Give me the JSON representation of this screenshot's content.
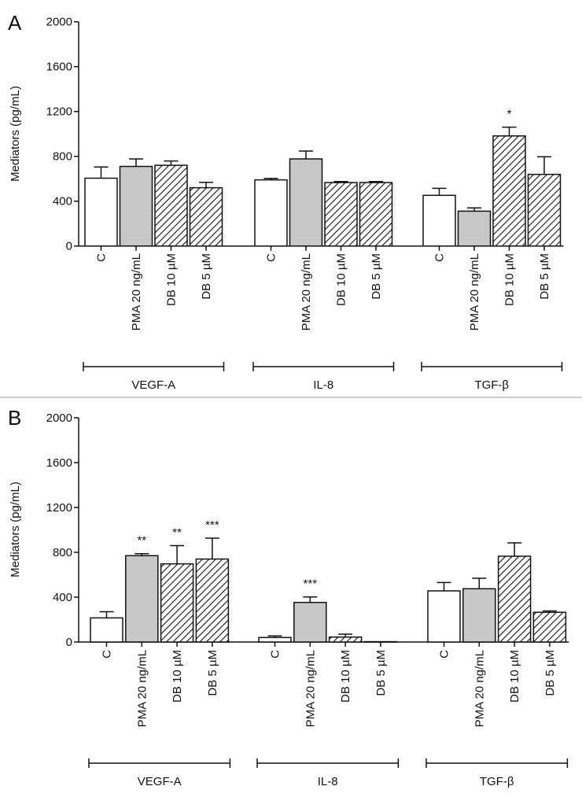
{
  "chart_data": [
    {
      "type": "bar",
      "panel": "A",
      "ylabel": "Mediators (pg/mL)",
      "ylim": [
        0,
        2000
      ],
      "yticks": [
        0,
        400,
        800,
        1200,
        1600,
        2000
      ],
      "categories": [
        "C",
        "PMA 20 ng/mL",
        "DB 10 µM",
        "DB 5 µM"
      ],
      "groups": [
        {
          "name": "VEGF-A",
          "values": [
            605,
            710,
            720,
            520
          ],
          "errors": [
            100,
            67,
            38,
            48
          ],
          "annotations": [
            "",
            "",
            "",
            ""
          ]
        },
        {
          "name": "IL-8",
          "values": [
            590,
            777,
            566,
            566
          ],
          "errors": [
            13,
            70,
            9,
            9
          ],
          "annotations": [
            "",
            "",
            "",
            ""
          ]
        },
        {
          "name": "TGF-β",
          "values": [
            452,
            311,
            982,
            639
          ],
          "errors": [
            63,
            29,
            78,
            157
          ],
          "annotations": [
            "",
            "",
            "*",
            ""
          ]
        }
      ]
    },
    {
      "type": "bar",
      "panel": "B",
      "ylabel": "Mediators (pg/mL)",
      "ylim": [
        0,
        2000
      ],
      "yticks": [
        0,
        400,
        800,
        1200,
        1600,
        2000
      ],
      "categories": [
        "C",
        "PMA 20 ng/mL",
        "DB 10 µM",
        "DB 5 µM"
      ],
      "groups": [
        {
          "name": "VEGF-A",
          "values": [
            215,
            770,
            697,
            740
          ],
          "errors": [
            55,
            18,
            163,
            186
          ],
          "annotations": [
            "",
            "**",
            "**",
            "***"
          ]
        },
        {
          "name": "IL-8",
          "values": [
            40,
            353,
            44,
            3
          ],
          "errors": [
            14,
            49,
            26,
            0
          ],
          "annotations": [
            "",
            "***",
            "",
            ""
          ]
        },
        {
          "name": "TGF-β",
          "values": [
            456,
            475,
            765,
            265
          ],
          "errors": [
            75,
            93,
            119,
            12
          ],
          "annotations": [
            "",
            "",
            "",
            ""
          ]
        }
      ]
    }
  ],
  "fills": [
    "#ffffff",
    "#c8c8c8",
    "hatch",
    "hatch"
  ]
}
